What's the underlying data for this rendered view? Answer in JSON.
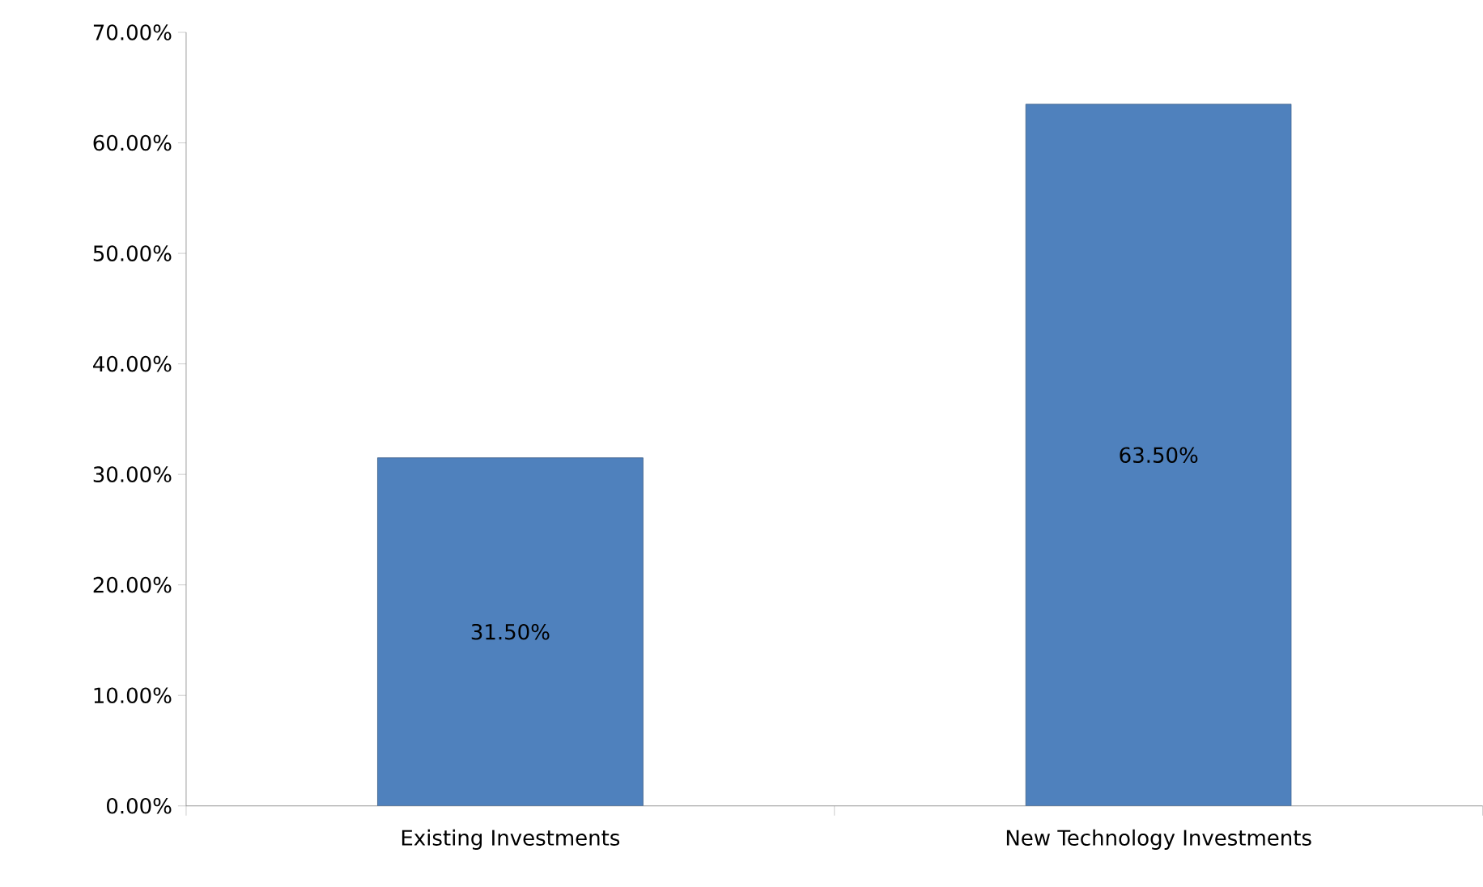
{
  "chart_data": {
    "type": "bar",
    "categories": [
      "Existing Investments",
      "New Technology Investments"
    ],
    "values": [
      31.5,
      63.5
    ],
    "value_labels": [
      "31.50%",
      "63.50%"
    ],
    "color": "#4f81bd",
    "ylim": [
      0,
      70
    ],
    "yticks": [
      {
        "value": 0,
        "label": "0.00%"
      },
      {
        "value": 10,
        "label": "10.00%"
      },
      {
        "value": 20,
        "label": "20.00%"
      },
      {
        "value": 30,
        "label": "30.00%"
      },
      {
        "value": 40,
        "label": "40.00%"
      },
      {
        "value": 50,
        "label": "50.00%"
      },
      {
        "value": 60,
        "label": "60.00%"
      },
      {
        "value": 70,
        "label": "70.00%"
      }
    ]
  }
}
